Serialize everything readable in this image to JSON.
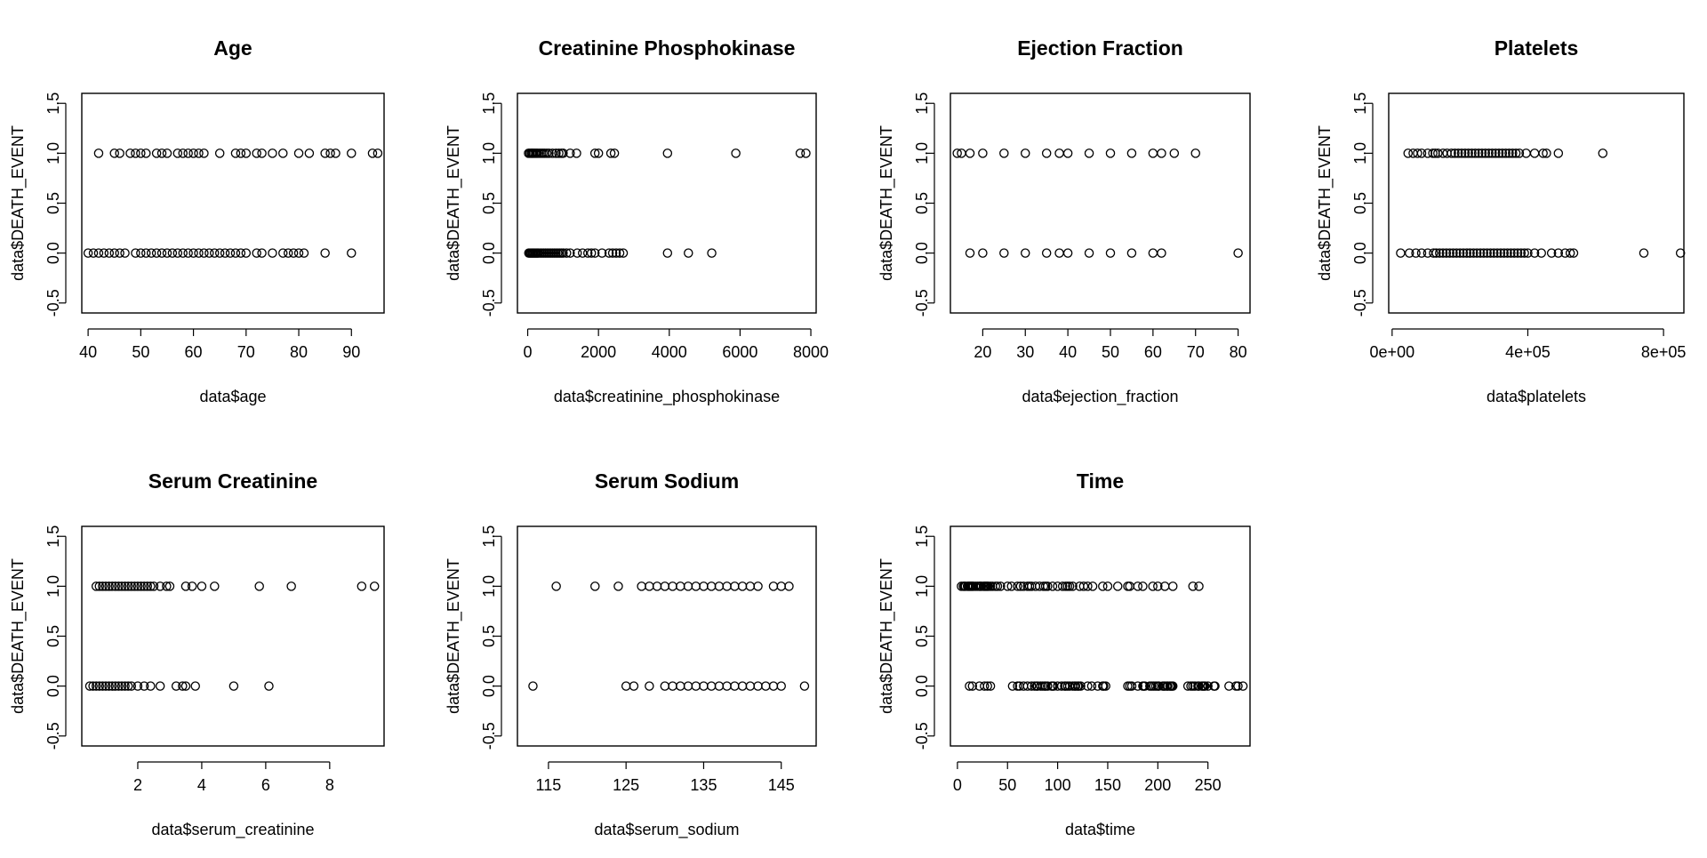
{
  "chart_data": [
    {
      "type": "scatter",
      "title": "Age",
      "xlabel": "data$age",
      "ylabel": "data$DEATH_EVENT",
      "xlim": [
        38.8,
        96.2
      ],
      "ylim": [
        -0.6,
        1.6
      ],
      "xticks": [
        40,
        50,
        60,
        70,
        80,
        90
      ],
      "xtick_labels": [
        "40",
        "50",
        "60",
        "70",
        "80",
        "90"
      ],
      "yticks": [
        -0.5,
        0.0,
        0.5,
        1.0,
        1.5
      ],
      "ytick_labels": [
        "-0.5",
        "0.0",
        "0.5",
        "1.0",
        "1.5"
      ],
      "series": [
        {
          "values_at": 1,
          "x": [
            42,
            45,
            46,
            48,
            49,
            50,
            51,
            53,
            54,
            55,
            57,
            58,
            59,
            60,
            61,
            62,
            65,
            68,
            69,
            70,
            72,
            73,
            75,
            77,
            80,
            82,
            85,
            86,
            87,
            90,
            94,
            95
          ]
        },
        {
          "values_at": 0,
          "x": [
            40,
            41,
            42,
            43,
            44,
            45,
            46,
            47,
            49,
            50,
            51,
            52,
            53,
            54,
            55,
            56,
            57,
            58,
            59,
            60,
            61,
            62,
            63,
            64,
            65,
            66,
            67,
            68,
            69,
            70,
            72,
            73,
            75,
            77,
            78,
            79,
            80,
            81,
            85,
            90
          ]
        }
      ]
    },
    {
      "type": "scatter",
      "title": "Creatinine Phosphokinase",
      "xlabel": "data$creatinine_phosphokinase",
      "ylabel": "data$DEATH_EVENT",
      "xlim": [
        -290,
        8150
      ],
      "ylim": [
        -0.6,
        1.6
      ],
      "xticks": [
        0,
        2000,
        4000,
        6000,
        8000
      ],
      "xtick_labels": [
        "0",
        "2000",
        "4000",
        "6000",
        "8000"
      ],
      "yticks": [
        -0.5,
        0.0,
        0.5,
        1.0,
        1.5
      ],
      "ytick_labels": [
        "-0.5",
        "0.0",
        "0.5",
        "1.0",
        "1.5"
      ],
      "series": [
        {
          "values_at": 1,
          "x": [
            23,
            60,
            100,
            130,
            160,
            200,
            240,
            280,
            330,
            380,
            430,
            480,
            540,
            600,
            700,
            800,
            880,
            950,
            1000,
            1200,
            1380,
            1900,
            2000,
            2350,
            2450,
            3950,
            5880,
            7700,
            7860
          ]
        },
        {
          "values_at": 0,
          "x": [
            30,
            60,
            90,
            120,
            150,
            180,
            210,
            240,
            270,
            300,
            350,
            400,
            450,
            500,
            550,
            600,
            650,
            700,
            750,
            800,
            850,
            900,
            950,
            1000,
            1100,
            1200,
            1400,
            1550,
            1700,
            1800,
            1900,
            2100,
            2300,
            2400,
            2500,
            2600,
            2700,
            3950,
            4540,
            5200
          ]
        }
      ]
    },
    {
      "type": "scatter",
      "title": "Ejection Fraction",
      "xlabel": "data$ejection_fraction",
      "ylabel": "data$DEATH_EVENT",
      "xlim": [
        12.4,
        82.8
      ],
      "ylim": [
        -0.6,
        1.6
      ],
      "xticks": [
        20,
        30,
        40,
        50,
        60,
        70,
        80
      ],
      "xtick_labels": [
        "20",
        "30",
        "40",
        "50",
        "60",
        "70",
        "80"
      ],
      "yticks": [
        -0.5,
        0.0,
        0.5,
        1.0,
        1.5
      ],
      "ytick_labels": [
        "-0.5",
        "0.0",
        "0.5",
        "1.0",
        "1.5"
      ],
      "series": [
        {
          "values_at": 1,
          "x": [
            14,
            15,
            17,
            20,
            25,
            30,
            35,
            38,
            40,
            45,
            50,
            55,
            60,
            62,
            65,
            70
          ]
        },
        {
          "values_at": 0,
          "x": [
            17,
            20,
            25,
            30,
            35,
            38,
            40,
            45,
            50,
            55,
            60,
            62,
            80
          ]
        }
      ]
    },
    {
      "type": "scatter",
      "title": "Platelets",
      "xlabel": "data$platelets",
      "ylabel": "data$DEATH_EVENT",
      "xlim": [
        -10000,
        860000
      ],
      "ylim": [
        -0.6,
        1.6
      ],
      "xticks": [
        0,
        400000,
        800000
      ],
      "xtick_labels": [
        "0e+00",
        "4e+05",
        "8e+05"
      ],
      "yticks": [
        -0.5,
        0.0,
        0.5,
        1.0,
        1.5
      ],
      "ytick_labels": [
        "-0.5",
        "0.0",
        "0.5",
        "1.0",
        "1.5"
      ],
      "series": [
        {
          "values_at": 1,
          "x": [
            47000,
            62000,
            75000,
            87000,
            105000,
            120000,
            127000,
            135000,
            150000,
            162000,
            175000,
            185000,
            195000,
            205000,
            215000,
            225000,
            235000,
            245000,
            255000,
            265000,
            275000,
            285000,
            295000,
            305000,
            315000,
            325000,
            335000,
            345000,
            355000,
            365000,
            375000,
            395000,
            420000,
            445000,
            455000,
            490000,
            621000
          ]
        },
        {
          "values_at": 0,
          "x": [
            25100,
            51000,
            70000,
            87000,
            105000,
            122000,
            130000,
            140000,
            150000,
            160000,
            170000,
            180000,
            190000,
            200000,
            210000,
            220000,
            230000,
            240000,
            250000,
            260000,
            270000,
            280000,
            290000,
            300000,
            310000,
            320000,
            330000,
            340000,
            350000,
            360000,
            370000,
            380000,
            390000,
            400000,
            420000,
            440000,
            470000,
            490000,
            510000,
            525000,
            535000,
            742000,
            850000
          ]
        }
      ]
    },
    {
      "type": "scatter",
      "title": "Serum Creatinine",
      "xlabel": "data$serum_creatinine",
      "ylabel": "data$DEATH_EVENT",
      "xlim": [
        0.25,
        9.7
      ],
      "ylim": [
        -0.6,
        1.6
      ],
      "xticks": [
        2,
        4,
        6,
        8
      ],
      "xtick_labels": [
        "2",
        "4",
        "6",
        "8"
      ],
      "yticks": [
        -0.5,
        0.0,
        0.5,
        1.0,
        1.5
      ],
      "ytick_labels": [
        "-0.5",
        "0.0",
        "0.5",
        "1.0",
        "1.5"
      ],
      "series": [
        {
          "values_at": 1,
          "x": [
            0.7,
            0.8,
            0.9,
            1.0,
            1.1,
            1.2,
            1.3,
            1.4,
            1.5,
            1.6,
            1.7,
            1.8,
            1.9,
            2.0,
            2.1,
            2.2,
            2.3,
            2.4,
            2.5,
            2.7,
            2.9,
            3.0,
            3.5,
            3.7,
            4.0,
            4.4,
            5.8,
            6.8,
            9.0,
            9.4
          ]
        },
        {
          "values_at": 0,
          "x": [
            0.5,
            0.6,
            0.7,
            0.8,
            0.9,
            1.0,
            1.1,
            1.2,
            1.3,
            1.4,
            1.5,
            1.6,
            1.7,
            1.8,
            2.0,
            2.2,
            2.4,
            2.7,
            3.2,
            3.4,
            3.5,
            3.8,
            5.0,
            6.1
          ]
        }
      ]
    },
    {
      "type": "scatter",
      "title": "Serum Sodium",
      "xlabel": "data$serum_sodium",
      "ylabel": "data$DEATH_EVENT",
      "xlim": [
        111,
        149.5
      ],
      "ylim": [
        -0.6,
        1.6
      ],
      "xticks": [
        115,
        125,
        135,
        145
      ],
      "xtick_labels": [
        "115",
        "125",
        "135",
        "145"
      ],
      "yticks": [
        -0.5,
        0.0,
        0.5,
        1.0,
        1.5
      ],
      "ytick_labels": [
        "-0.5",
        "0.0",
        "0.5",
        "1.0",
        "1.5"
      ],
      "series": [
        {
          "values_at": 1,
          "x": [
            116,
            121,
            124,
            127,
            128,
            129,
            130,
            131,
            132,
            133,
            134,
            135,
            136,
            137,
            138,
            139,
            140,
            141,
            142,
            144,
            145,
            146
          ]
        },
        {
          "values_at": 0,
          "x": [
            113,
            125,
            126,
            128,
            130,
            131,
            132,
            133,
            134,
            135,
            136,
            137,
            138,
            139,
            140,
            141,
            142,
            143,
            144,
            145,
            148
          ]
        }
      ]
    },
    {
      "type": "scatter",
      "title": "Time",
      "xlabel": "data$time",
      "ylabel": "data$DEATH_EVENT",
      "xlim": [
        -7,
        292
      ],
      "ylim": [
        -0.6,
        1.6
      ],
      "xticks": [
        0,
        50,
        100,
        150,
        200,
        250
      ],
      "xtick_labels": [
        "0",
        "50",
        "100",
        "150",
        "200",
        "250"
      ],
      "yticks": [
        -0.5,
        0.0,
        0.5,
        1.0,
        1.5
      ],
      "ytick_labels": [
        "-0.5",
        "0.0",
        "0.5",
        "1.0",
        "1.5"
      ],
      "series": [
        {
          "values_at": 1,
          "x": [
            4,
            6,
            7,
            8,
            10,
            11,
            12,
            13,
            14,
            15,
            16,
            18,
            20,
            22,
            23,
            24,
            26,
            27,
            28,
            29,
            30,
            31,
            33,
            35,
            38,
            40,
            43,
            50,
            54,
            60,
            63,
            66,
            70,
            72,
            74,
            78,
            82,
            86,
            88,
            90,
            95,
            100,
            105,
            108,
            110,
            112,
            115,
            122,
            126,
            130,
            135,
            145,
            150,
            160,
            170,
            172,
            180,
            185,
            195,
            200,
            207,
            215,
            235,
            241
          ]
        },
        {
          "values_at": 0,
          "x": [
            12,
            15,
            22,
            27,
            30,
            33,
            55,
            60,
            62,
            66,
            70,
            74,
            77,
            79,
            80,
            83,
            85,
            87,
            88,
            90,
            94,
            95,
            96,
            100,
            104,
            107,
            108,
            110,
            112,
            115,
            117,
            118,
            120,
            121,
            123,
            130,
            134,
            140,
            145,
            146,
            148,
            170,
            172,
            174,
            180,
            185,
            186,
            187,
            192,
            194,
            196,
            198,
            200,
            201,
            205,
            206,
            207,
            209,
            210,
            212,
            213,
            214,
            215,
            230,
            233,
            235,
            237,
            240,
            241,
            244,
            245,
            246,
            247,
            250,
            256,
            257,
            271,
            278,
            280,
            285
          ]
        }
      ]
    }
  ]
}
